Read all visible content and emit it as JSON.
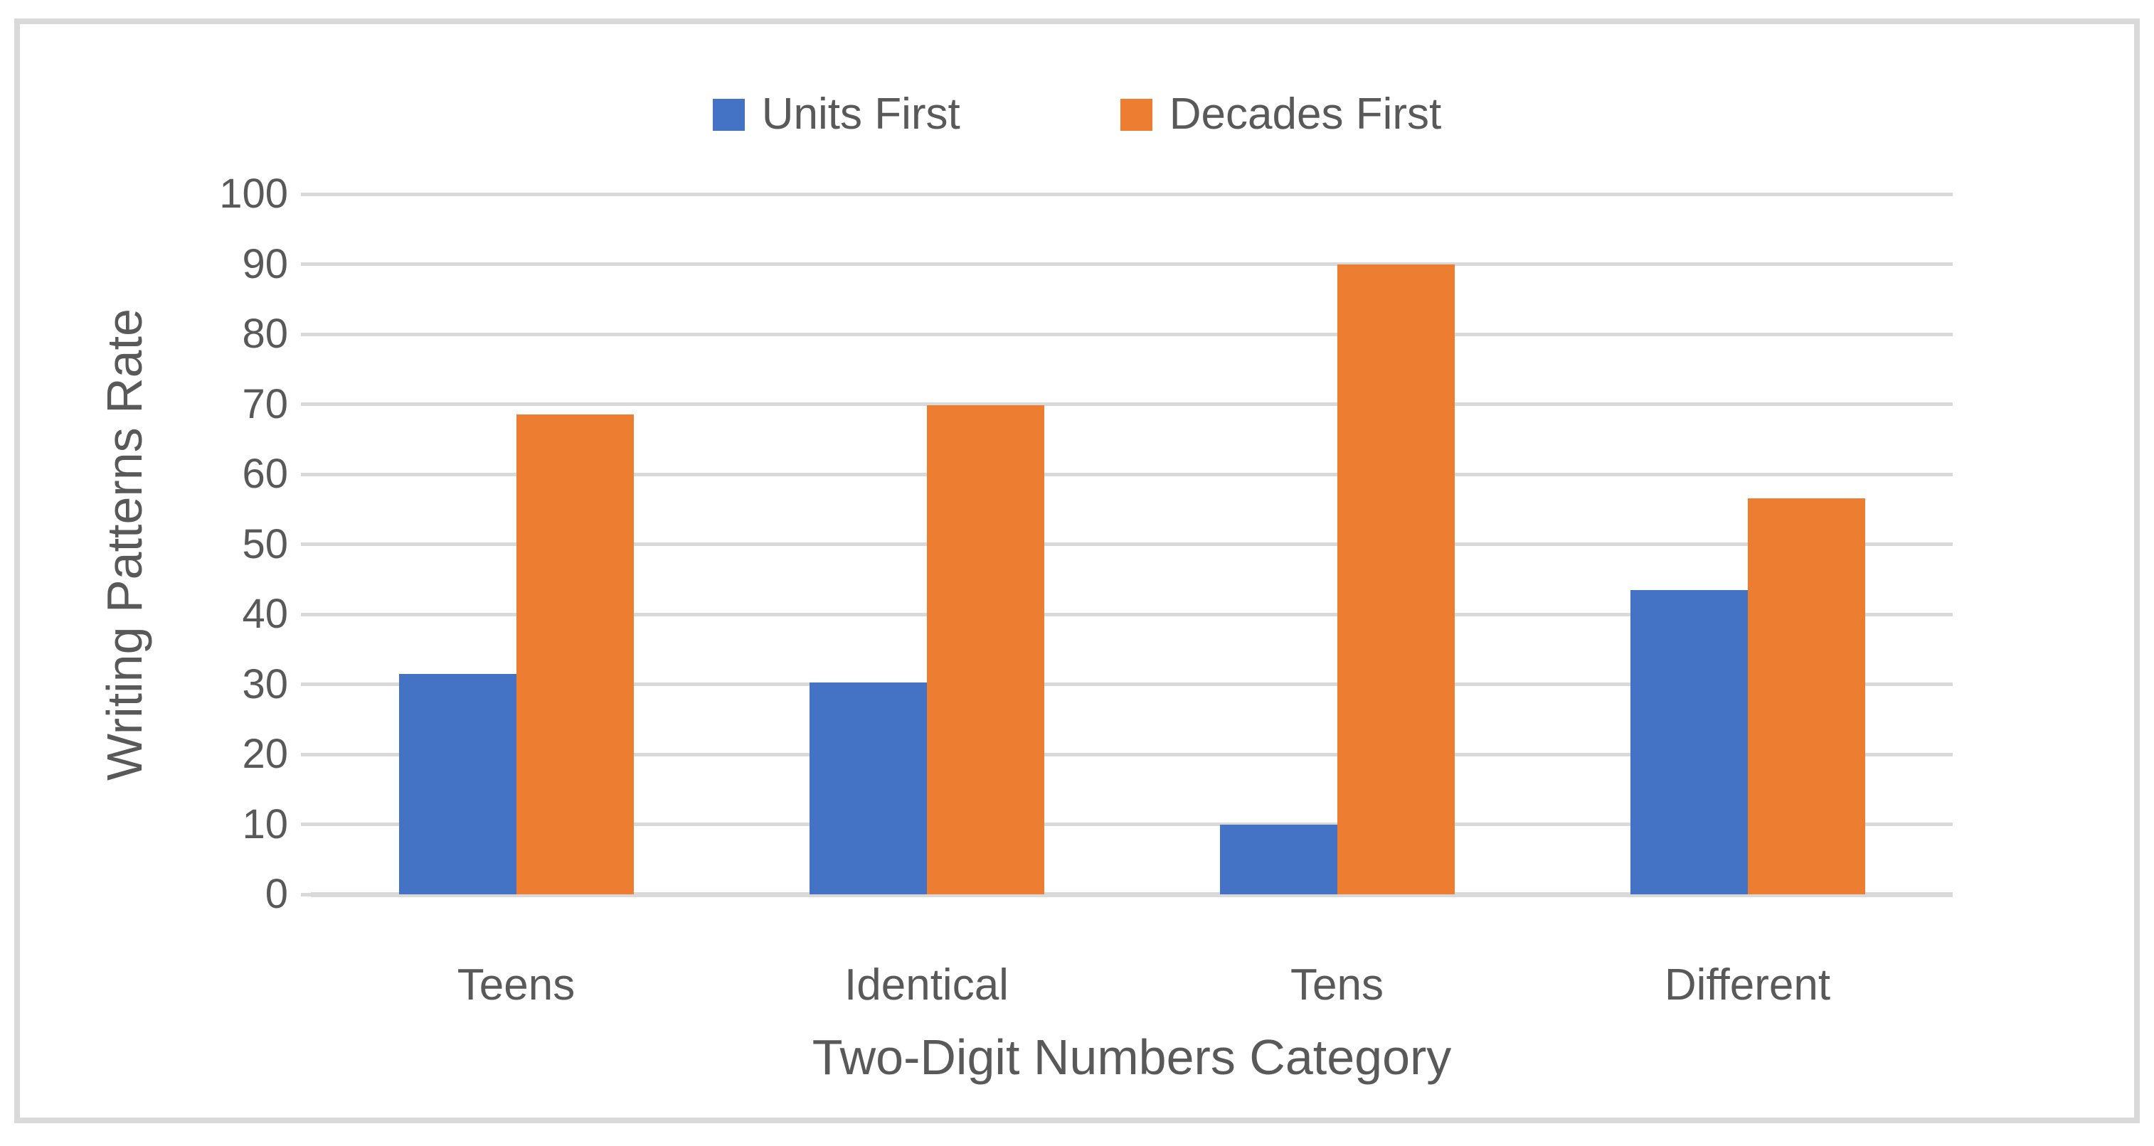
{
  "chart_data": {
    "type": "bar",
    "title": "",
    "categories": [
      "Teens",
      "Identical",
      "Tens",
      "Different"
    ],
    "series": [
      {
        "name": "Units First",
        "color": "#4472C4",
        "values": [
          31.5,
          30.3,
          10,
          43.5
        ]
      },
      {
        "name": "Decades First",
        "color": "#ED7D31",
        "values": [
          68.5,
          69.8,
          90,
          56.5
        ]
      }
    ],
    "xlabel": "Two-Digit Numbers Category",
    "ylabel": "Writing Patterns Rate",
    "ylim": [
      0,
      100
    ],
    "ytick_step": 10,
    "ytick_labels": [
      "0",
      "10",
      "20",
      "30",
      "40",
      "50",
      "60",
      "70",
      "80",
      "90",
      "100"
    ],
    "grid": true,
    "legend_position": "top-center",
    "colors": {
      "gridline": "#D9D9D9",
      "axis_line": "#D9D9D9",
      "text": "#595959",
      "frame_border": "#D9D9D9",
      "background": "#ffffff"
    }
  }
}
